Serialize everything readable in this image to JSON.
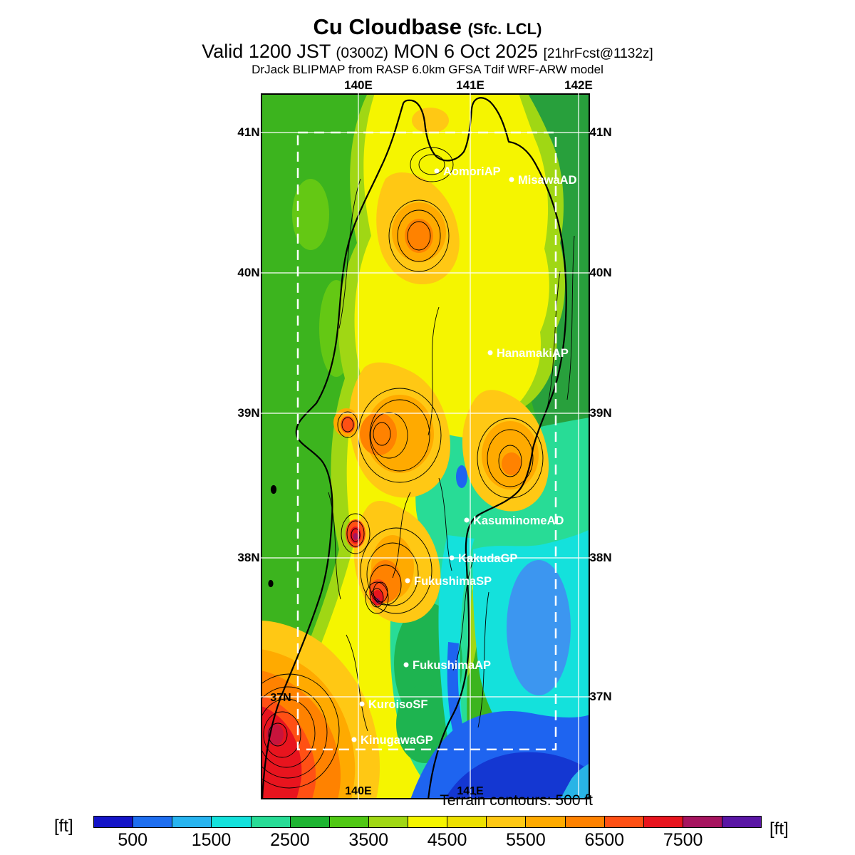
{
  "header": {
    "title_main": "Cu Cloudbase",
    "title_suffix": "(Sfc. LCL)",
    "valid_prefix": "Valid 1200 JST",
    "valid_zulu": "(0300Z)",
    "valid_date": "MON 6 Oct 2025",
    "valid_fcst": "[21hrFcst@1132z]",
    "model_line": "DrJack BLIPMAP from RASP 6.0km GFSA Tdif WRF-ARW model"
  },
  "map_notes": {
    "terrain_note": "Terrain contours: 500 ft"
  },
  "colorbar_units_label": "[ft]",
  "chart_data": {
    "type": "heatmap",
    "title": "Cu Cloudbase (Sfc. LCL)",
    "subtitle": "Valid 1200 JST (0300Z) MON 6 Oct 2025 [21hrFcst@1132z]",
    "model": "DrJack BLIPMAP from RASP 6.0km GFSA Tdif WRF-ARW model",
    "units": "ft",
    "scale": {
      "min_ft": 0,
      "max_ft": 8500,
      "step_ft": 500,
      "colors": [
        "#1414c8",
        "#1e6ef0",
        "#28b4f0",
        "#14e1dc",
        "#28dc96",
        "#1eb432",
        "#50c814",
        "#a0d714",
        "#f5f500",
        "#ede000",
        "#ffc814",
        "#ffaa00",
        "#ff8200",
        "#ff5014",
        "#e8141e",
        "#a6145f",
        "#5a16a5"
      ],
      "tick_labels": [
        "500",
        "1500",
        "2500",
        "3500",
        "4500",
        "5500",
        "6500",
        "7500"
      ],
      "tick_boundary_indices": [
        1,
        3,
        5,
        7,
        9,
        11,
        13,
        15
      ]
    },
    "axes": {
      "lon_ticks": [
        {
          "label": "140E",
          "fx": 0.2965,
          "top": true,
          "bottom_inside": true
        },
        {
          "label": "141E",
          "fx": 0.6364,
          "top": true,
          "bottom_inside": true
        },
        {
          "label": "142E",
          "fx": 0.9654,
          "top": true,
          "bottom_inside": false
        }
      ],
      "lat_ticks": [
        {
          "label": "41N",
          "fy": 0.0555,
          "left": "outside"
        },
        {
          "label": "40N",
          "fy": 0.2543,
          "left": "outside"
        },
        {
          "label": "39N",
          "fy": 0.4531,
          "left": "outside"
        },
        {
          "label": "38N",
          "fy": 0.6579,
          "left": "outside"
        },
        {
          "label": "37N",
          "fy": 0.8547,
          "left": "inside"
        }
      ]
    },
    "inner_domain_box": {
      "fx1": 0.1126,
      "fy1": 0.0555,
      "fx2": 0.8961,
      "fy2": 0.9293
    },
    "stations": [
      {
        "name": "AomoriAP",
        "fx": 0.5346,
        "fy": 0.11
      },
      {
        "name": "MisawaAD",
        "fx": 0.7619,
        "fy": 0.1221
      },
      {
        "name": "HanamakiAP",
        "fx": 0.697,
        "fy": 0.3673
      },
      {
        "name": "KasuminomeAD",
        "fx": 0.6255,
        "fy": 0.6044
      },
      {
        "name": "KakudaGP",
        "fx": 0.5801,
        "fy": 0.6579
      },
      {
        "name": "FukushimaSP",
        "fx": 0.4459,
        "fy": 0.6902
      },
      {
        "name": "FukushimaAP",
        "fx": 0.4416,
        "fy": 0.8093
      },
      {
        "name": "KuroisoSF",
        "fx": 0.3074,
        "fy": 0.8648
      },
      {
        "name": "KinugawaGP",
        "fx": 0.2835,
        "fy": 0.9152
      }
    ],
    "features": [
      {
        "area": "Southwest mountains (bottom-left bullseye)",
        "cloudbase_ft": "7000-8000+",
        "color": "red / dark red"
      },
      {
        "area": "Central Ou range 38N-38.5N cores",
        "cloudbase_ft": "6500-7500",
        "color": "red-orange with dark cores"
      },
      {
        "area": "Central mountain spine and basins",
        "cloudbase_ft": "4500-6000",
        "color": "yellow-orange"
      },
      {
        "area": "Sea of Japan side plains (west)",
        "cloudbase_ft": "3000-4000",
        "color": "green"
      },
      {
        "area": "Northeast around MisawaAD",
        "cloudbase_ft": "2500-3500",
        "color": "dark green"
      },
      {
        "area": "Pacific coastal plain Sendai-Fukushima",
        "cloudbase_ft": "1000-2500",
        "color": "teal / cyan"
      },
      {
        "area": "Southeast Pacific corner",
        "cloudbase_ft": "500-1000",
        "color": "blue / deep blue"
      }
    ]
  }
}
